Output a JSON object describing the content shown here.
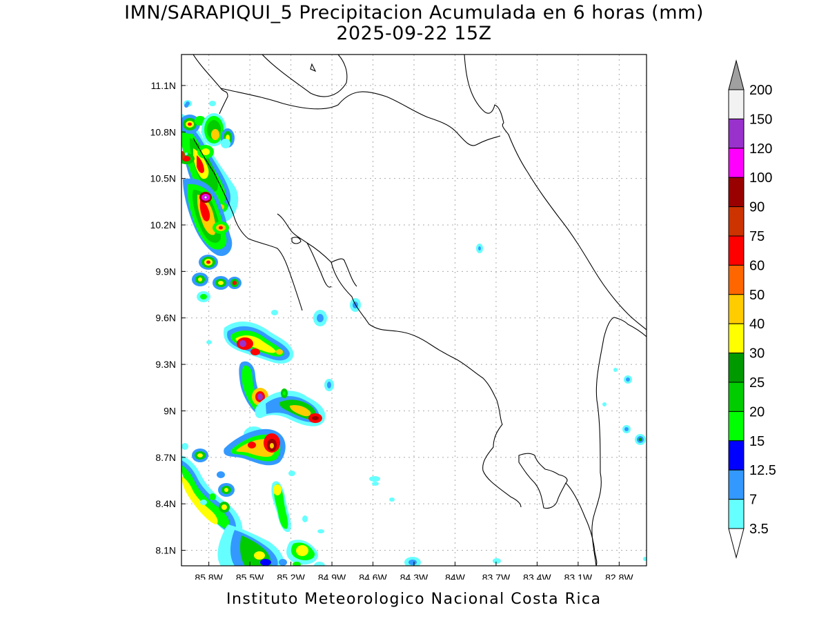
{
  "header": {
    "title_line1": "IMN/SARAPIQUI_5 Precipitacion Acumulada en 6 horas (mm)",
    "title_line2": "2025-09-22 15Z"
  },
  "footer": {
    "credit": "Instituto Meteorologico Nacional Costa Rica"
  },
  "map": {
    "lon_range": [
      -86.0,
      -82.6
    ],
    "lat_range": [
      8.0,
      11.3
    ],
    "x_ticks": [
      "85.8W",
      "85.5W",
      "85.2W",
      "84.9W",
      "84.6W",
      "84.3W",
      "84W",
      "83.7W",
      "83.4W",
      "83.1W",
      "82.8W"
    ],
    "y_ticks": [
      "11.1N",
      "10.8N",
      "10.5N",
      "10.2N",
      "9.9N",
      "9.6N",
      "9.3N",
      "9N",
      "8.7N",
      "8.4N",
      "8.1N"
    ],
    "grid": true
  },
  "colorbar": {
    "labels": [
      "200",
      "150",
      "120",
      "100",
      "90",
      "75",
      "60",
      "50",
      "40",
      "30",
      "25",
      "20",
      "15",
      "12.5",
      "7",
      "3.5"
    ],
    "colors": [
      "#f2f2f2",
      "#9932cc",
      "#ff00ff",
      "#990000",
      "#cc3300",
      "#ff0000",
      "#ff6600",
      "#ffcc00",
      "#ffff00",
      "#009900",
      "#00cc00",
      "#00ff00",
      "#0000ff",
      "#3399ff",
      "#66ffff"
    ],
    "top_arrow_color": "#a0a0a0",
    "bottom_arrow_color": "#ffffff"
  }
}
